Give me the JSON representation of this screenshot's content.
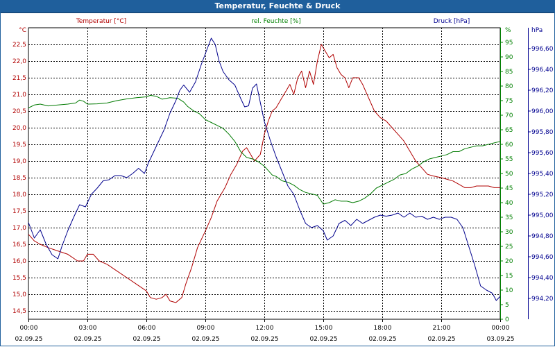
{
  "window": {
    "title": "Temperatur, Feuchte & Druck"
  },
  "chart_data": {
    "type": "line",
    "title": "Temperatur, Feuchte & Druck",
    "x_ticks": [
      {
        "time": "00:00",
        "date": "02.09.25"
      },
      {
        "time": "03:00",
        "date": "02.09.25"
      },
      {
        "time": "06:00",
        "date": "02.09.25"
      },
      {
        "time": "09:00",
        "date": "02.09.25"
      },
      {
        "time": "12:00",
        "date": "02.09.25"
      },
      {
        "time": "15:00",
        "date": "02.09.25"
      },
      {
        "time": "18:00",
        "date": "02.09.25"
      },
      {
        "time": "21:00",
        "date": "02.09.25"
      },
      {
        "time": "00:00",
        "date": "03.09.25"
      }
    ],
    "x_range_hours": [
      0,
      24
    ],
    "grid": true,
    "axes": {
      "temperature": {
        "label": "Temperatur [°C]",
        "unit": "°C",
        "color": "#b00000",
        "side": "left",
        "range": [
          14.25,
          23.0
        ],
        "ticks": [
          "14,5",
          "15,0",
          "15,5",
          "16,0",
          "16,5",
          "17,0",
          "17,5",
          "18,0",
          "18,5",
          "19,0",
          "19,5",
          "20,0",
          "20,5",
          "21,0",
          "21,5",
          "22,0",
          "22,5"
        ]
      },
      "humidity": {
        "label": "rel. Feuchte [%]",
        "unit": "%",
        "color": "#008000",
        "side": "right",
        "range": [
          0,
          100
        ],
        "ticks": [
          "0",
          "5",
          "10",
          "15",
          "20",
          "25",
          "30",
          "35",
          "40",
          "45",
          "50",
          "55",
          "60",
          "65",
          "70",
          "75",
          "80",
          "85",
          "90",
          "95"
        ]
      },
      "pressure": {
        "label": "Druck [hPa]",
        "unit": "hPa",
        "color": "#000090",
        "side": "right-outer",
        "range": [
          994.0,
          996.8
        ],
        "ticks": [
          "994,20",
          "994,40",
          "994,60",
          "994,80",
          "995,00",
          "995,20",
          "995,40",
          "995,60",
          "995,80",
          "996,00",
          "996,20",
          "996,40",
          "996,60"
        ]
      }
    },
    "series": [
      {
        "name": "Temperatur",
        "axis": "temperature",
        "color": "#b00000",
        "points": [
          [
            0,
            16.8
          ],
          [
            0.3,
            16.6
          ],
          [
            0.6,
            16.5
          ],
          [
            1,
            16.4
          ],
          [
            1.5,
            16.3
          ],
          [
            2,
            16.2
          ],
          [
            2.5,
            16.0
          ],
          [
            2.8,
            16.0
          ],
          [
            3,
            16.2
          ],
          [
            3.3,
            16.2
          ],
          [
            3.6,
            16.0
          ],
          [
            4,
            15.9
          ],
          [
            4.5,
            15.7
          ],
          [
            5,
            15.5
          ],
          [
            5.5,
            15.3
          ],
          [
            6,
            15.1
          ],
          [
            6.2,
            14.9
          ],
          [
            6.5,
            14.85
          ],
          [
            6.8,
            14.9
          ],
          [
            7,
            15.0
          ],
          [
            7.2,
            14.8
          ],
          [
            7.5,
            14.75
          ],
          [
            7.8,
            14.9
          ],
          [
            8,
            15.3
          ],
          [
            8.3,
            15.8
          ],
          [
            8.6,
            16.4
          ],
          [
            9,
            16.9
          ],
          [
            9.3,
            17.3
          ],
          [
            9.6,
            17.8
          ],
          [
            10,
            18.2
          ],
          [
            10.3,
            18.6
          ],
          [
            10.6,
            18.9
          ],
          [
            10.9,
            19.3
          ],
          [
            11.1,
            19.4
          ],
          [
            11.3,
            19.2
          ],
          [
            11.5,
            19.0
          ],
          [
            11.8,
            19.2
          ],
          [
            12,
            19.8
          ],
          [
            12.2,
            20.2
          ],
          [
            12.4,
            20.5
          ],
          [
            12.6,
            20.6
          ],
          [
            12.9,
            20.9
          ],
          [
            13.1,
            21.1
          ],
          [
            13.3,
            21.3
          ],
          [
            13.5,
            21.0
          ],
          [
            13.7,
            21.5
          ],
          [
            13.9,
            21.7
          ],
          [
            14.1,
            21.2
          ],
          [
            14.3,
            21.7
          ],
          [
            14.5,
            21.3
          ],
          [
            14.7,
            22.0
          ],
          [
            14.9,
            22.5
          ],
          [
            15.1,
            22.3
          ],
          [
            15.3,
            22.1
          ],
          [
            15.5,
            22.2
          ],
          [
            15.7,
            21.8
          ],
          [
            15.9,
            21.6
          ],
          [
            16.1,
            21.5
          ],
          [
            16.3,
            21.2
          ],
          [
            16.5,
            21.5
          ],
          [
            16.8,
            21.5
          ],
          [
            17,
            21.3
          ],
          [
            17.3,
            20.9
          ],
          [
            17.6,
            20.5
          ],
          [
            17.9,
            20.3
          ],
          [
            18.2,
            20.2
          ],
          [
            18.5,
            20.0
          ],
          [
            18.8,
            19.8
          ],
          [
            19.1,
            19.6
          ],
          [
            19.4,
            19.3
          ],
          [
            19.7,
            19.0
          ],
          [
            20,
            18.8
          ],
          [
            20.3,
            18.6
          ],
          [
            20.6,
            18.55
          ],
          [
            21,
            18.5
          ],
          [
            21.3,
            18.45
          ],
          [
            21.6,
            18.4
          ],
          [
            21.9,
            18.3
          ],
          [
            22.2,
            18.2
          ],
          [
            22.5,
            18.2
          ],
          [
            22.8,
            18.25
          ],
          [
            23.1,
            18.25
          ],
          [
            23.4,
            18.25
          ],
          [
            23.7,
            18.2
          ],
          [
            24,
            18.2
          ]
        ]
      },
      {
        "name": "rel. Feuchte",
        "axis": "humidity",
        "color": "#007a00",
        "points": [
          [
            0,
            72.5
          ],
          [
            0.3,
            73.5
          ],
          [
            0.6,
            73.8
          ],
          [
            1,
            73.2
          ],
          [
            1.5,
            73.5
          ],
          [
            2,
            73.8
          ],
          [
            2.4,
            74.2
          ],
          [
            2.6,
            75.2
          ],
          [
            2.8,
            74.8
          ],
          [
            3,
            73.8
          ],
          [
            3.5,
            73.9
          ],
          [
            4,
            74.2
          ],
          [
            4.5,
            75.0
          ],
          [
            5,
            75.6
          ],
          [
            5.5,
            76.0
          ],
          [
            6,
            76.3
          ],
          [
            6.2,
            76.8
          ],
          [
            6.5,
            76.5
          ],
          [
            6.8,
            75.5
          ],
          [
            7.2,
            76.0
          ],
          [
            7.6,
            75.8
          ],
          [
            7.9,
            74.5
          ],
          [
            8.1,
            73.0
          ],
          [
            8.4,
            71.5
          ],
          [
            8.7,
            70.5
          ],
          [
            9,
            68.5
          ],
          [
            9.3,
            67.5
          ],
          [
            9.6,
            66.5
          ],
          [
            9.9,
            65.5
          ],
          [
            10.2,
            63.5
          ],
          [
            10.5,
            61.0
          ],
          [
            10.8,
            57.5
          ],
          [
            11.1,
            55.5
          ],
          [
            11.4,
            55.0
          ],
          [
            11.7,
            54.0
          ],
          [
            12,
            52.5
          ],
          [
            12.2,
            51.0
          ],
          [
            12.4,
            49.5
          ],
          [
            12.6,
            49.0
          ],
          [
            12.9,
            47.5
          ],
          [
            13.2,
            47.0
          ],
          [
            13.5,
            46.0
          ],
          [
            13.8,
            44.5
          ],
          [
            14.1,
            43.5
          ],
          [
            14.4,
            43.0
          ],
          [
            14.7,
            42.5
          ],
          [
            15,
            39.5
          ],
          [
            15.3,
            40.0
          ],
          [
            15.6,
            41.0
          ],
          [
            15.9,
            40.5
          ],
          [
            16.2,
            40.5
          ],
          [
            16.5,
            40.0
          ],
          [
            16.8,
            40.5
          ],
          [
            17.1,
            41.5
          ],
          [
            17.4,
            43.0
          ],
          [
            17.7,
            45.0
          ],
          [
            18,
            46.0
          ],
          [
            18.3,
            47.0
          ],
          [
            18.6,
            48.0
          ],
          [
            18.9,
            49.5
          ],
          [
            19.2,
            50.0
          ],
          [
            19.5,
            51.5
          ],
          [
            19.8,
            52.5
          ],
          [
            20.1,
            54.0
          ],
          [
            20.4,
            55.0
          ],
          [
            20.7,
            55.5
          ],
          [
            21,
            56.0
          ],
          [
            21.3,
            56.5
          ],
          [
            21.6,
            57.5
          ],
          [
            21.9,
            57.5
          ],
          [
            22.2,
            58.5
          ],
          [
            22.5,
            59.0
          ],
          [
            22.8,
            59.5
          ],
          [
            23.1,
            59.5
          ],
          [
            23.4,
            60.0
          ],
          [
            23.7,
            60.5
          ],
          [
            24,
            61.0
          ]
        ]
      },
      {
        "name": "Druck",
        "axis": "pressure",
        "color": "#00008c",
        "points": [
          [
            0,
            994.93
          ],
          [
            0.3,
            994.78
          ],
          [
            0.6,
            994.86
          ],
          [
            0.9,
            994.72
          ],
          [
            1.2,
            994.62
          ],
          [
            1.5,
            994.58
          ],
          [
            1.7,
            994.7
          ],
          [
            2,
            994.85
          ],
          [
            2.3,
            994.98
          ],
          [
            2.6,
            995.1
          ],
          [
            2.9,
            995.08
          ],
          [
            3.2,
            995.2
          ],
          [
            3.5,
            995.26
          ],
          [
            3.8,
            995.33
          ],
          [
            4.1,
            995.34
          ],
          [
            4.4,
            995.38
          ],
          [
            4.7,
            995.38
          ],
          [
            5,
            995.36
          ],
          [
            5.3,
            995.4
          ],
          [
            5.6,
            995.45
          ],
          [
            5.9,
            995.4
          ],
          [
            6.1,
            995.5
          ],
          [
            6.3,
            995.58
          ],
          [
            6.6,
            995.7
          ],
          [
            6.9,
            995.82
          ],
          [
            7.2,
            995.98
          ],
          [
            7.5,
            996.1
          ],
          [
            7.7,
            996.2
          ],
          [
            7.9,
            996.25
          ],
          [
            8.2,
            996.18
          ],
          [
            8.5,
            996.28
          ],
          [
            8.8,
            996.45
          ],
          [
            9.1,
            996.6
          ],
          [
            9.3,
            996.7
          ],
          [
            9.5,
            996.64
          ],
          [
            9.7,
            996.48
          ],
          [
            9.9,
            996.38
          ],
          [
            10.2,
            996.3
          ],
          [
            10.5,
            996.25
          ],
          [
            10.8,
            996.12
          ],
          [
            11.0,
            996.04
          ],
          [
            11.2,
            996.05
          ],
          [
            11.4,
            996.22
          ],
          [
            11.6,
            996.26
          ],
          [
            11.8,
            996.08
          ],
          [
            12.0,
            995.9
          ],
          [
            12.3,
            995.72
          ],
          [
            12.6,
            995.56
          ],
          [
            12.9,
            995.42
          ],
          [
            13.2,
            995.28
          ],
          [
            13.5,
            995.2
          ],
          [
            13.8,
            995.05
          ],
          [
            14.1,
            994.92
          ],
          [
            14.4,
            994.88
          ],
          [
            14.7,
            994.9
          ],
          [
            15.0,
            994.85
          ],
          [
            15.2,
            994.76
          ],
          [
            15.5,
            994.8
          ],
          [
            15.8,
            994.92
          ],
          [
            16.1,
            994.95
          ],
          [
            16.4,
            994.9
          ],
          [
            16.7,
            994.96
          ],
          [
            17.0,
            994.92
          ],
          [
            17.3,
            994.95
          ],
          [
            17.6,
            994.98
          ],
          [
            17.9,
            995.0
          ],
          [
            18.2,
            994.99
          ],
          [
            18.5,
            995.0
          ],
          [
            18.8,
            995.02
          ],
          [
            19.1,
            994.98
          ],
          [
            19.4,
            995.02
          ],
          [
            19.7,
            994.98
          ],
          [
            20.0,
            994.99
          ],
          [
            20.3,
            994.96
          ],
          [
            20.6,
            994.98
          ],
          [
            20.9,
            994.96
          ],
          [
            21.2,
            994.98
          ],
          [
            21.5,
            994.98
          ],
          [
            21.8,
            994.96
          ],
          [
            22.1,
            994.88
          ],
          [
            22.4,
            994.7
          ],
          [
            22.7,
            994.52
          ],
          [
            23.0,
            994.32
          ],
          [
            23.3,
            994.28
          ],
          [
            23.6,
            994.25
          ],
          [
            23.8,
            994.18
          ],
          [
            24,
            994.22
          ]
        ]
      }
    ]
  }
}
